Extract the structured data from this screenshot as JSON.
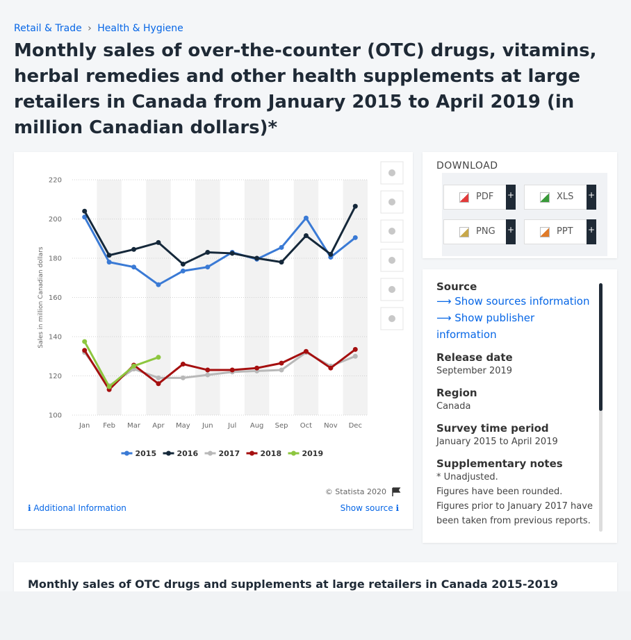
{
  "breadcrumbs": [
    "Retail & Trade",
    "Health & Hygiene"
  ],
  "title": "Monthly sales of over-the-counter (OTC) drugs, vitamins, herbal remedies and other health supplements at large retailers in Canada from January 2015 to April 2019 (in million Canadian dollars)*",
  "chart_data": {
    "type": "line",
    "y_label": "Sales in million Canadian dollars",
    "categories": [
      "Jan",
      "Feb",
      "Mar",
      "Apr",
      "May",
      "Jun",
      "Jul",
      "Aug",
      "Sep",
      "Oct",
      "Nov",
      "Dec"
    ],
    "series": [
      {
        "name": "2015",
        "color": "#3a7ad5",
        "values": [
          201,
          178,
          175.5,
          166.5,
          173.5,
          175.5,
          183,
          179.5,
          185.5,
          200.5,
          180.5,
          190.5
        ]
      },
      {
        "name": "2016",
        "color": "#15283a",
        "values": [
          204,
          181.5,
          184.5,
          188,
          177,
          183,
          182.5,
          180,
          178,
          191.5,
          182,
          206.5
        ]
      },
      {
        "name": "2017",
        "color": "#b8b8b8",
        "values": [
          132,
          115,
          123.5,
          119,
          119,
          120.5,
          122,
          122.5,
          123,
          132,
          125,
          130
        ]
      },
      {
        "name": "2018",
        "color": "#a50f0f",
        "values": [
          133,
          113,
          125.5,
          116,
          126,
          123,
          123,
          124,
          126.5,
          132.5,
          124,
          133.5
        ]
      },
      {
        "name": "2019",
        "color": "#8dc63f",
        "values": [
          137.5,
          114.5,
          125,
          129.5,
          null,
          null,
          null,
          null,
          null,
          null,
          null,
          null
        ]
      }
    ],
    "ylim": [
      100,
      220
    ],
    "yticks": [
      100,
      120,
      140,
      160,
      180,
      200,
      220
    ],
    "grid": true,
    "legend": "bottom",
    "credit": "© Statista 2020"
  },
  "chart_links": {
    "additional_information": "Additional Information",
    "show_source": "Show source"
  },
  "download": {
    "heading": "DOWNLOAD",
    "formats": [
      "PDF",
      "XLS",
      "PNG",
      "PPT"
    ],
    "more": "+"
  },
  "details": {
    "source_heading": "Source",
    "source_links": [
      "Show sources information",
      "Show publisher information"
    ],
    "items": [
      {
        "label": "Release date",
        "value": "September 2019"
      },
      {
        "label": "Region",
        "value": "Canada"
      },
      {
        "label": "Survey time period",
        "value": "January 2015 to April 2019"
      }
    ],
    "notes_heading": "Supplementary notes",
    "notes": [
      "* Unadjusted.",
      "Figures have been rounded.",
      "Figures prior to January 2017 have been taken from previous reports."
    ]
  },
  "footer_title": "Monthly sales of OTC drugs and supplements at large retailers in Canada 2015-2019"
}
